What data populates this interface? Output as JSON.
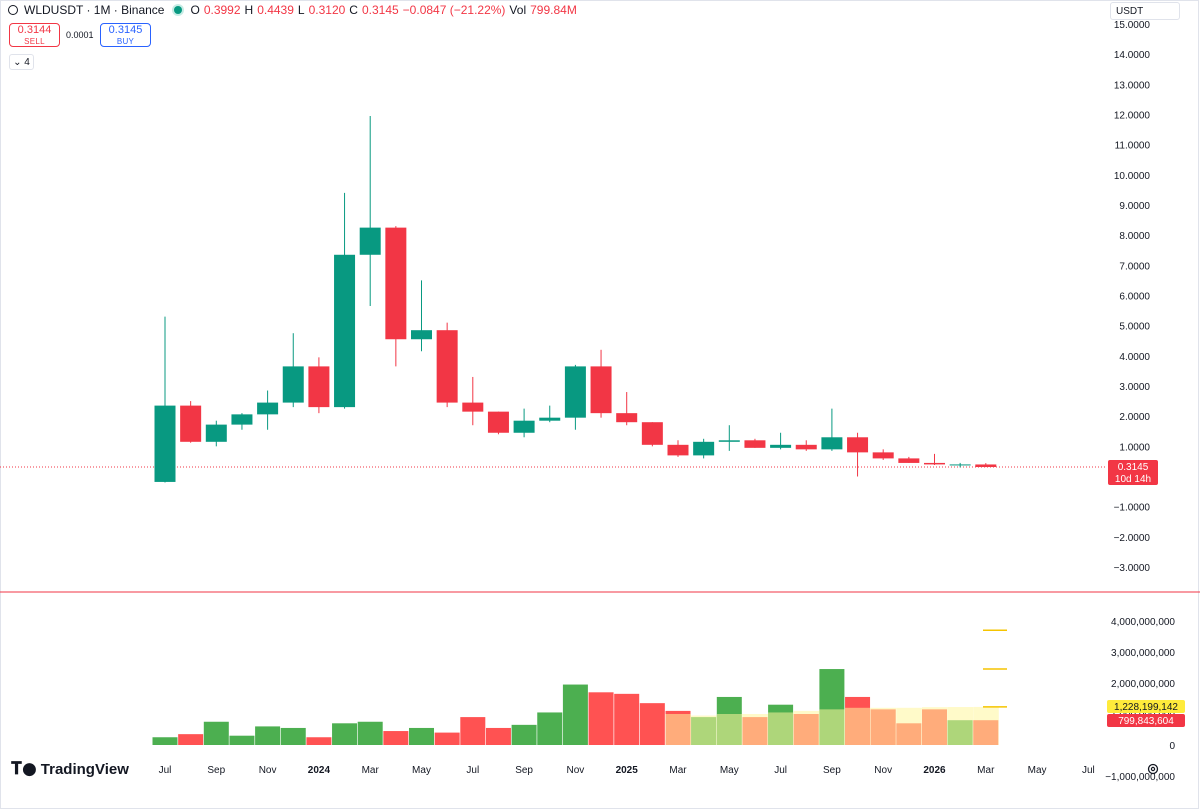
{
  "legend": {
    "symbol": "WLDUSDT · 1M · Binance",
    "o_label": "O",
    "o_value": "0.3992",
    "h_label": "H",
    "h_value": "0.4439",
    "l_label": "L",
    "l_value": "0.3120",
    "c_label": "C",
    "c_value": "0.3145",
    "change": "−0.0847 (−21.22%)",
    "vol_label": "Vol",
    "vol_value": "799.84M"
  },
  "trade": {
    "sell_price": "0.3144",
    "sell_label": "SELL",
    "spread": "0.0001",
    "buy_price": "0.3145",
    "buy_label": "BUY"
  },
  "collapse_count": "4",
  "currency": "USDT",
  "logo_text": "TradingView",
  "price_tag": {
    "price": "0.3145",
    "countdown": "10d 14h"
  },
  "volume_tags": {
    "ma": "1,228,199,142",
    "current": "799,843,604"
  },
  "colors": {
    "up": "#089981",
    "down": "#f23645",
    "vol_up": "#4caf50",
    "vol_down": "#ff5252",
    "ma_fill": "#fff59d",
    "ma_line": "#f5c400"
  },
  "chart_data": [
    {
      "type": "candlestick",
      "interval": "1M",
      "y_axis_labels": [
        "15.0000",
        "14.0000",
        "13.0000",
        "12.0000",
        "11.0000",
        "10.0000",
        "9.0000",
        "8.0000",
        "7.0000",
        "6.0000",
        "5.0000",
        "4.0000",
        "3.0000",
        "2.0000",
        "1.0000",
        "−1.0000",
        "−2.0000",
        "−3.0000"
      ],
      "ylim": [
        -3.5,
        15.5
      ],
      "x_tick_labels": [
        "Jul",
        "Sep",
        "Nov",
        "2024",
        "Mar",
        "May",
        "Jul",
        "Sep",
        "Nov",
        "2025",
        "Mar",
        "May",
        "Jul",
        "Sep",
        "Nov",
        "2026",
        "Mar",
        "May",
        "Jul"
      ],
      "x_tick_bold": [
        false,
        false,
        false,
        true,
        false,
        false,
        false,
        false,
        false,
        true,
        false,
        false,
        false,
        false,
        false,
        true,
        false,
        false,
        false
      ],
      "months": [
        "2023-07",
        "2023-08",
        "2023-09",
        "2023-10",
        "2023-11",
        "2023-12",
        "2024-01",
        "2024-02",
        "2024-03",
        "2024-04",
        "2024-05",
        "2024-06",
        "2024-07",
        "2024-08",
        "2024-09",
        "2024-10",
        "2024-11",
        "2024-12",
        "2025-01",
        "2025-02",
        "2025-03",
        "2025-04",
        "2025-05",
        "2025-06",
        "2025-07",
        "2025-08",
        "2025-09",
        "2025-10",
        "2025-11",
        "2025-12",
        "2026-01",
        "2026-02",
        "2026-03"
      ],
      "candles": [
        [
          -0.18,
          5.3,
          -0.2,
          2.35
        ],
        [
          2.35,
          2.5,
          1.12,
          1.15
        ],
        [
          1.15,
          1.85,
          1.0,
          1.72
        ],
        [
          1.72,
          2.1,
          1.55,
          2.06
        ],
        [
          2.06,
          2.85,
          1.55,
          2.45
        ],
        [
          2.45,
          4.75,
          2.3,
          3.65
        ],
        [
          3.65,
          3.95,
          2.1,
          2.3
        ],
        [
          2.3,
          9.4,
          2.25,
          7.35
        ],
        [
          7.35,
          11.95,
          5.65,
          8.25
        ],
        [
          8.25,
          8.3,
          3.65,
          4.55
        ],
        [
          4.55,
          6.5,
          4.15,
          4.85
        ],
        [
          4.85,
          5.1,
          2.3,
          2.45
        ],
        [
          2.45,
          3.3,
          1.7,
          2.15
        ],
        [
          2.15,
          2.15,
          1.4,
          1.45
        ],
        [
          1.45,
          2.25,
          1.3,
          1.85
        ],
        [
          1.85,
          2.35,
          1.8,
          1.95
        ],
        [
          1.95,
          3.7,
          1.55,
          3.65
        ],
        [
          3.65,
          4.2,
          1.95,
          2.1
        ],
        [
          2.1,
          2.8,
          1.7,
          1.8
        ],
        [
          1.8,
          1.8,
          1.0,
          1.05
        ],
        [
          1.05,
          1.2,
          0.65,
          0.7
        ],
        [
          0.7,
          1.25,
          0.6,
          1.15
        ],
        [
          1.15,
          1.7,
          0.85,
          1.2
        ],
        [
          1.2,
          1.25,
          0.95,
          0.95
        ],
        [
          0.95,
          1.45,
          0.9,
          1.05
        ],
        [
          1.05,
          1.2,
          0.85,
          0.9
        ],
        [
          0.9,
          2.25,
          0.85,
          1.3
        ],
        [
          1.3,
          1.45,
          0.0,
          0.8
        ],
        [
          0.8,
          0.9,
          0.55,
          0.6
        ],
        [
          0.6,
          0.65,
          0.45,
          0.45
        ],
        [
          0.45,
          0.75,
          0.38,
          0.4
        ],
        [
          0.4,
          0.45,
          0.3,
          0.4
        ],
        [
          0.3992,
          0.4439,
          0.312,
          0.3145
        ]
      ],
      "last_price": 0.3145
    },
    {
      "type": "bar",
      "series_label": "Volume",
      "y_axis_labels": [
        "4,000,000,000",
        "3,000,000,000",
        "2,000,000,000",
        "1,000,000,000",
        "0",
        "−1,000,000,000"
      ],
      "ylim": [
        -1200000000,
        4300000000
      ],
      "values": [
        250000000,
        350000000,
        750000000,
        300000000,
        600000000,
        550000000,
        250000000,
        700000000,
        750000000,
        450000000,
        550000000,
        400000000,
        900000000,
        550000000,
        650000000,
        1050000000,
        1950000000,
        1700000000,
        1650000000,
        1350000000,
        1100000000,
        900000000,
        1550000000,
        900000000,
        1300000000,
        1000000000,
        2450000000,
        1550000000,
        1150000000,
        700000000,
        1150000000,
        800000000,
        799843604
      ],
      "ma_values": [
        null,
        null,
        null,
        null,
        null,
        null,
        null,
        null,
        null,
        null,
        null,
        null,
        null,
        null,
        null,
        null,
        null,
        null,
        null,
        null,
        1000000000,
        950000000,
        1000000000,
        1000000000,
        1050000000,
        1100000000,
        1150000000,
        1200000000,
        1200000000,
        1200000000,
        1220000000,
        1225000000,
        1228199142
      ],
      "ma_projection": [
        3700000000,
        2450000000,
        1228199142
      ]
    }
  ]
}
